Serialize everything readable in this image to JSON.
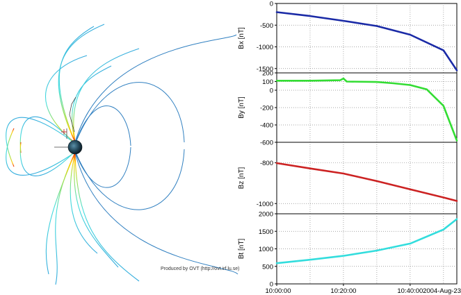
{
  "credit": "Produced by OVT (http://ovt.irf.lu.se)",
  "date_label": "2004-Aug-23",
  "chart_data": [
    {
      "type": "line",
      "panel": "Bx",
      "ylabel": "Bx [nT]",
      "ylim": [
        -1600,
        0
      ],
      "yticks": [
        0,
        -500,
        -1000,
        -1500
      ],
      "color": "#1a2aa6",
      "x": [
        "10:00:00",
        "10:10:00",
        "10:20:00",
        "10:30:00",
        "10:40:00",
        "10:50:00",
        "10:54:00"
      ],
      "values": [
        -200,
        -290,
        -400,
        -520,
        -720,
        -1080,
        -1540
      ]
    },
    {
      "type": "line",
      "panel": "By",
      "ylabel": "By [nT]",
      "ylim": [
        -600,
        200
      ],
      "yticks": [
        200,
        100,
        0,
        -200,
        -400,
        -600
      ],
      "color": "#33dd33",
      "x": [
        "10:00:00",
        "10:10:00",
        "10:19:00",
        "10:20:00",
        "10:21:00",
        "10:30:00",
        "10:35:00",
        "10:40:00",
        "10:45:00",
        "10:50:00",
        "10:54:00"
      ],
      "values": [
        110,
        110,
        115,
        135,
        100,
        95,
        80,
        60,
        10,
        -180,
        -580
      ]
    },
    {
      "type": "line",
      "panel": "Bz",
      "ylabel": "Bz [nT]",
      "ylim": [
        -1050,
        -700
      ],
      "yticks": [
        -800,
        -1000
      ],
      "color": "#cc2222",
      "x": [
        "10:00:00",
        "10:10:00",
        "10:20:00",
        "10:30:00",
        "10:40:00",
        "10:50:00",
        "10:54:00"
      ],
      "values": [
        -802,
        -828,
        -853,
        -890,
        -930,
        -970,
        -987
      ]
    },
    {
      "type": "line",
      "panel": "Bt",
      "ylabel": "Bt [nT]",
      "ylim": [
        0,
        2000
      ],
      "yticks": [
        2000,
        1500,
        1000,
        500,
        0
      ],
      "color": "#33dddd",
      "x": [
        "10:00:00",
        "10:10:00",
        "10:20:00",
        "10:30:00",
        "10:40:00",
        "10:50:00",
        "10:54:00"
      ],
      "values": [
        590,
        690,
        800,
        950,
        1150,
        1550,
        1850
      ],
      "xticks": [
        "10:00:00",
        "10:20:00",
        "10:40:00"
      ]
    }
  ]
}
